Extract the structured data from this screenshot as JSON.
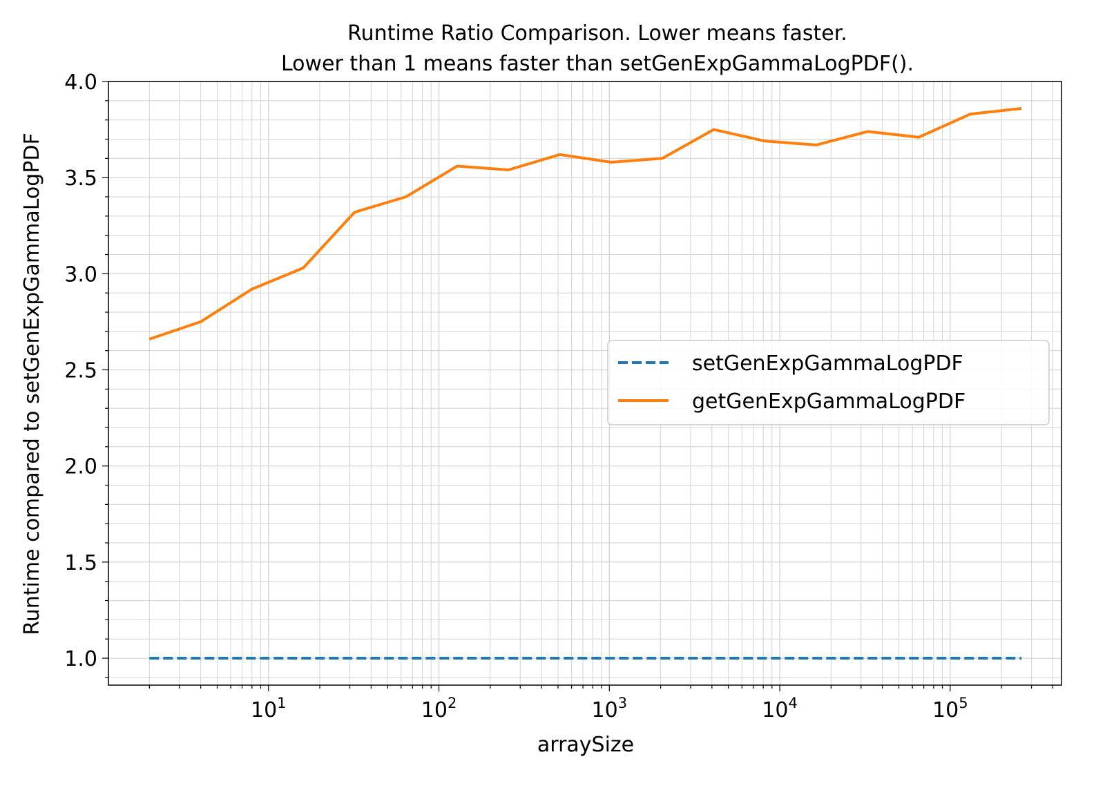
{
  "chart_data": {
    "type": "line",
    "title_line1": "Runtime Ratio Comparison. Lower means faster.",
    "title_line2": "Lower than 1 means faster than setGenExpGammaLogPDF().",
    "xlabel": "arraySize",
    "ylabel": "Runtime compared to setGenExpGammaLogPDF",
    "xscale": "log",
    "xlim": [
      1.15,
      450000
    ],
    "ylim": [
      0.86,
      4.0
    ],
    "x_ticks": [
      {
        "value": 10,
        "base": "10",
        "exp": "1"
      },
      {
        "value": 100,
        "base": "10",
        "exp": "2"
      },
      {
        "value": 1000,
        "base": "10",
        "exp": "3"
      },
      {
        "value": 10000,
        "base": "10",
        "exp": "4"
      },
      {
        "value": 100000,
        "base": "10",
        "exp": "5"
      }
    ],
    "y_ticks": [
      "1.0",
      "1.5",
      "2.0",
      "2.5",
      "3.0",
      "3.5",
      "4.0"
    ],
    "grid": true,
    "legend_position": "center-right",
    "x": [
      2,
      4,
      8,
      16,
      32,
      64,
      128,
      256,
      512,
      1024,
      2048,
      4096,
      8192,
      16384,
      32768,
      65536,
      131072,
      262144
    ],
    "series": [
      {
        "name": "setGenExpGammaLogPDF",
        "color": "#1f77b4",
        "style": "dashed",
        "values": [
          1,
          1,
          1,
          1,
          1,
          1,
          1,
          1,
          1,
          1,
          1,
          1,
          1,
          1,
          1,
          1,
          1,
          1
        ]
      },
      {
        "name": "getGenExpGammaLogPDF",
        "color": "#ff7f0e",
        "style": "solid",
        "values": [
          2.66,
          2.75,
          2.92,
          3.03,
          3.32,
          3.4,
          3.56,
          3.54,
          3.62,
          3.58,
          3.6,
          3.75,
          3.69,
          3.67,
          3.74,
          3.71,
          3.83,
          3.86
        ]
      }
    ]
  }
}
